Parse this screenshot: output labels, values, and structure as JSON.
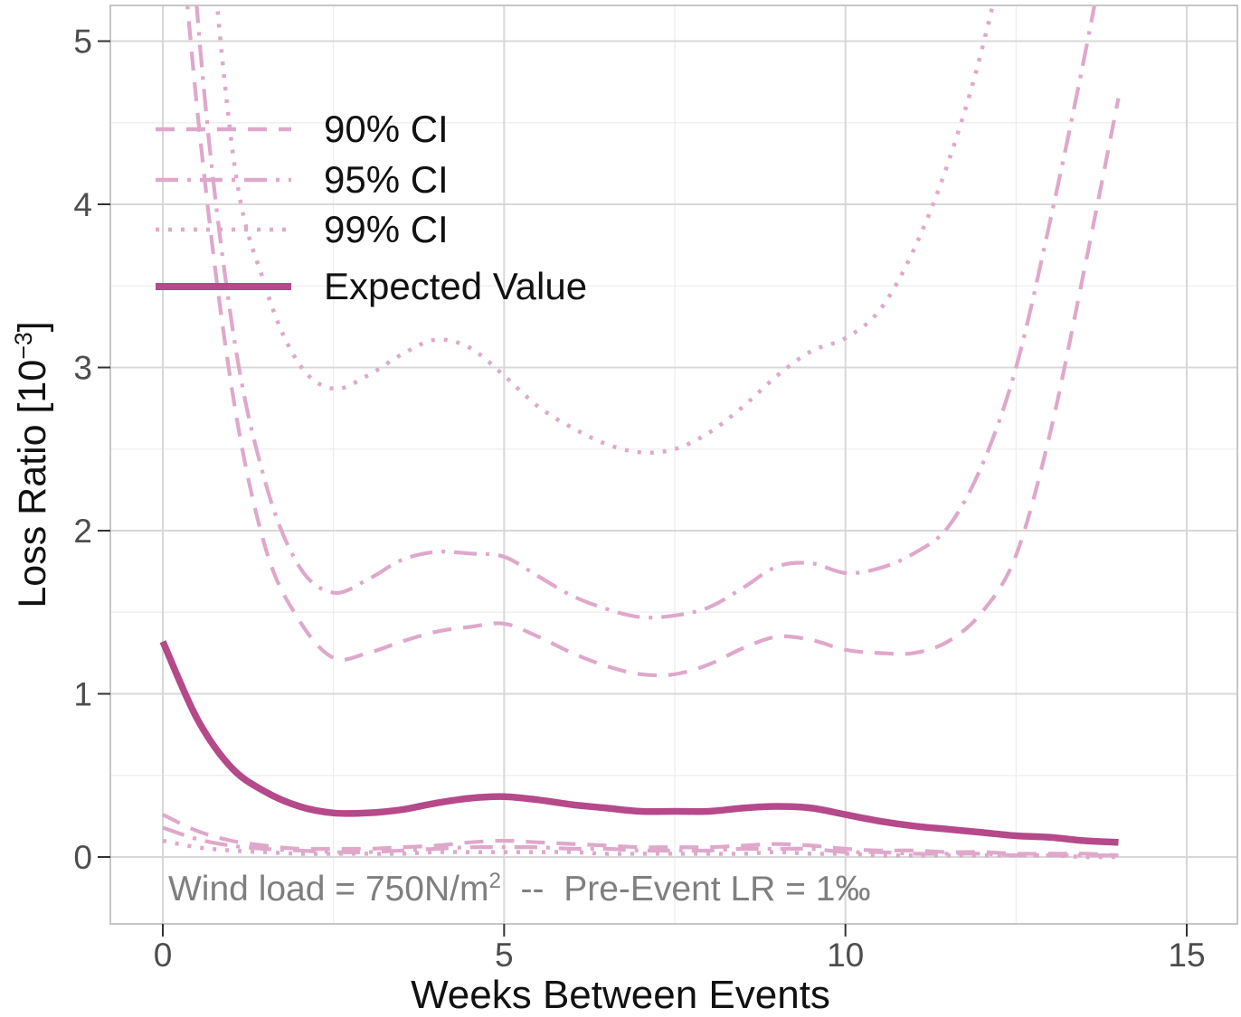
{
  "chart_data": {
    "type": "line",
    "title": "",
    "xlabel": "Weeks Between Events",
    "ylabel": {
      "pre": "Loss Ratio [10",
      "sup": "−3",
      "post": "]"
    },
    "annotation": {
      "pre": "Wind load = 750N/m",
      "sup": "2",
      "post": "  --  Pre-Event LR = 1‰"
    },
    "xlim": [
      0,
      15
    ],
    "ylim": [
      0,
      5
    ],
    "xticks": [
      0,
      5,
      10,
      15
    ],
    "yticks": [
      0,
      1,
      2,
      3,
      4,
      5
    ],
    "grid": "major+minor",
    "legend_position": "top-left-inside",
    "colors": {
      "ci": "#dfa8cb",
      "expected": "#b5498a",
      "grid_major": "#d8d8d8",
      "grid_minor": "#eeeeee",
      "panel_border": "#c6c6c6",
      "tick": "#333333",
      "tick_label": "#4d4d4d",
      "annotation_text": "#7f7f7f"
    },
    "x": [
      0,
      0.5,
      1,
      1.5,
      2,
      2.5,
      3,
      3.5,
      4,
      4.5,
      5,
      5.5,
      6,
      6.5,
      7,
      7.5,
      8,
      8.5,
      9,
      9.5,
      10,
      10.5,
      11,
      11.5,
      12,
      12.5,
      13,
      13.5,
      14
    ],
    "series": [
      {
        "name": "90% CI",
        "style": "dashed",
        "color": "#dfa8cb",
        "width": 4.2,
        "upper": [
          7.0,
          4.6,
          2.9,
          1.9,
          1.45,
          1.22,
          1.25,
          1.32,
          1.38,
          1.41,
          1.43,
          1.35,
          1.25,
          1.17,
          1.12,
          1.12,
          1.18,
          1.28,
          1.35,
          1.33,
          1.27,
          1.25,
          1.25,
          1.32,
          1.5,
          1.85,
          2.6,
          3.6,
          4.65
        ],
        "lower": [
          0.26,
          0.16,
          0.1,
          0.07,
          0.05,
          0.05,
          0.05,
          0.06,
          0.07,
          0.09,
          0.1,
          0.09,
          0.08,
          0.07,
          0.06,
          0.06,
          0.06,
          0.07,
          0.08,
          0.07,
          0.05,
          0.04,
          0.04,
          0.03,
          0.03,
          0.02,
          0.02,
          0.02,
          0.01
        ]
      },
      {
        "name": "95% CI",
        "style": "dashdot",
        "color": "#dfa8cb",
        "width": 4.2,
        "upper": [
          8.5,
          5.2,
          3.3,
          2.3,
          1.78,
          1.62,
          1.7,
          1.82,
          1.87,
          1.86,
          1.84,
          1.72,
          1.6,
          1.52,
          1.47,
          1.48,
          1.53,
          1.65,
          1.78,
          1.8,
          1.74,
          1.77,
          1.86,
          2.02,
          2.4,
          3.0,
          3.9,
          4.9,
          6.0
        ],
        "lower": [
          0.18,
          0.11,
          0.07,
          0.05,
          0.04,
          0.03,
          0.03,
          0.04,
          0.05,
          0.06,
          0.06,
          0.06,
          0.05,
          0.05,
          0.04,
          0.04,
          0.04,
          0.05,
          0.05,
          0.05,
          0.03,
          0.03,
          0.02,
          0.02,
          0.02,
          0.01,
          0.01,
          0.01,
          0.01
        ]
      },
      {
        "name": "99% CI",
        "style": "dotted",
        "color": "#dfa8cb",
        "width": 4.5,
        "upper": [
          12,
          7,
          4.4,
          3.5,
          3.02,
          2.87,
          2.95,
          3.08,
          3.17,
          3.12,
          2.95,
          2.76,
          2.63,
          2.53,
          2.48,
          2.5,
          2.6,
          2.76,
          2.95,
          3.1,
          3.18,
          3.35,
          3.72,
          4.25,
          4.95,
          5.9,
          7.2,
          8.8,
          10.5
        ],
        "lower": [
          0.1,
          0.06,
          0.04,
          0.03,
          0.02,
          0.02,
          0.02,
          0.02,
          0.03,
          0.03,
          0.03,
          0.03,
          0.03,
          0.02,
          0.02,
          0.02,
          0.02,
          0.02,
          0.03,
          0.02,
          0.02,
          0.01,
          0.01,
          0.01,
          0.01,
          0.01,
          0.01,
          0.0,
          0.0
        ]
      },
      {
        "name": "Expected Value",
        "style": "solid",
        "color": "#b5498a",
        "width": 7.5,
        "values": [
          1.32,
          0.85,
          0.55,
          0.4,
          0.31,
          0.27,
          0.27,
          0.29,
          0.33,
          0.36,
          0.37,
          0.35,
          0.32,
          0.3,
          0.28,
          0.28,
          0.28,
          0.3,
          0.31,
          0.3,
          0.26,
          0.22,
          0.19,
          0.17,
          0.15,
          0.13,
          0.12,
          0.1,
          0.09
        ]
      }
    ]
  }
}
